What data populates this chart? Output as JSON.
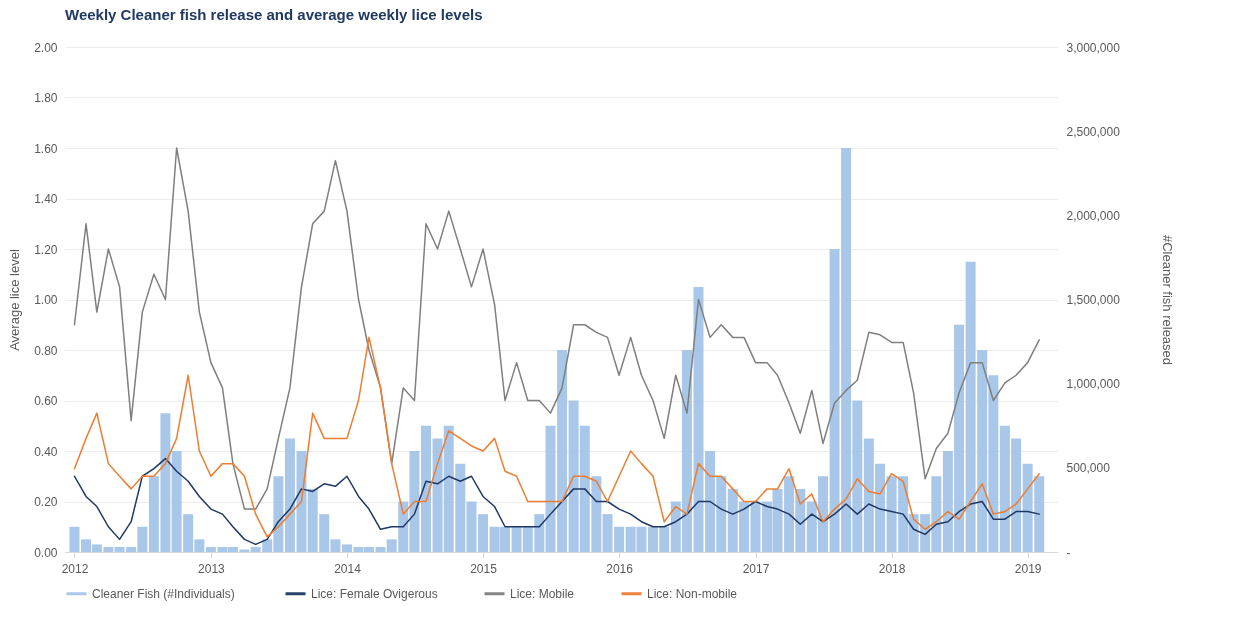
{
  "chart_data": {
    "type": "line",
    "title": "Weekly Cleaner fish release and average weekly lice levels",
    "ylabel": "Average lice level",
    "y2label": "#Cleaner fish released",
    "x": [
      "2012-01",
      "2012-02",
      "2012-03",
      "2012-04",
      "2012-05",
      "2012-06",
      "2012-07",
      "2012-08",
      "2012-09",
      "2012-10",
      "2012-11",
      "2012-12",
      "2013-01",
      "2013-02",
      "2013-03",
      "2013-04",
      "2013-05",
      "2013-06",
      "2013-07",
      "2013-08",
      "2013-09",
      "2013-10",
      "2013-11",
      "2013-12",
      "2014-01",
      "2014-02",
      "2014-03",
      "2014-04",
      "2014-05",
      "2014-06",
      "2014-07",
      "2014-08",
      "2014-09",
      "2014-10",
      "2014-11",
      "2014-12",
      "2015-01",
      "2015-02",
      "2015-03",
      "2015-04",
      "2015-05",
      "2015-06",
      "2015-07",
      "2015-08",
      "2015-09",
      "2015-10",
      "2015-11",
      "2015-12",
      "2016-01",
      "2016-02",
      "2016-03",
      "2016-04",
      "2016-05",
      "2016-06",
      "2016-07",
      "2016-08",
      "2016-09",
      "2016-10",
      "2016-11",
      "2016-12",
      "2017-01",
      "2017-02",
      "2017-03",
      "2017-04",
      "2017-05",
      "2017-06",
      "2017-07",
      "2017-08",
      "2017-09",
      "2017-10",
      "2017-11",
      "2017-12",
      "2018-01",
      "2018-02",
      "2018-03",
      "2018-04",
      "2018-05",
      "2018-06",
      "2018-07",
      "2018-08",
      "2018-09",
      "2018-10",
      "2018-11",
      "2018-12",
      "2019-01",
      "2019-02"
    ],
    "series": [
      {
        "name": "Cleaner Fish  (#Individuals)",
        "type": "bar",
        "axis": "y2",
        "color": "#a4c4e8",
        "values": [
          150000,
          75000,
          45000,
          30000,
          30000,
          30000,
          150000,
          450000,
          825000,
          600000,
          225000,
          75000,
          30000,
          30000,
          30000,
          15000,
          30000,
          75000,
          450000,
          675000,
          600000,
          375000,
          225000,
          75000,
          45000,
          30000,
          30000,
          30000,
          75000,
          300000,
          600000,
          750000,
          675000,
          750000,
          525000,
          300000,
          225000,
          150000,
          150000,
          150000,
          150000,
          225000,
          750000,
          1200000,
          900000,
          750000,
          450000,
          225000,
          150000,
          150000,
          150000,
          150000,
          150000,
          300000,
          1200000,
          1575000,
          600000,
          450000,
          375000,
          300000,
          300000,
          300000,
          375000,
          450000,
          375000,
          300000,
          450000,
          1800000,
          2400000,
          900000,
          675000,
          525000,
          450000,
          450000,
          225000,
          225000,
          450000,
          600000,
          1350000,
          1725000,
          1200000,
          1050000,
          750000,
          675000,
          525000,
          450000
        ]
      },
      {
        "name": "Lice: Female Ovigerous",
        "color": "#1f3864",
        "values": [
          0.3,
          0.22,
          0.18,
          0.1,
          0.05,
          0.12,
          0.3,
          0.33,
          0.37,
          0.32,
          0.28,
          0.22,
          0.17,
          0.15,
          0.1,
          0.05,
          0.03,
          0.05,
          0.12,
          0.17,
          0.25,
          0.24,
          0.27,
          0.26,
          0.3,
          0.22,
          0.17,
          0.09,
          0.1,
          0.1,
          0.15,
          0.28,
          0.27,
          0.3,
          0.28,
          0.3,
          0.22,
          0.18,
          0.1,
          0.1,
          0.1,
          0.1,
          0.15,
          0.2,
          0.25,
          0.25,
          0.2,
          0.2,
          0.17,
          0.15,
          0.12,
          0.1,
          0.1,
          0.12,
          0.15,
          0.2,
          0.2,
          0.17,
          0.15,
          0.17,
          0.2,
          0.18,
          0.17,
          0.15,
          0.11,
          0.15,
          0.12,
          0.15,
          0.19,
          0.15,
          0.19,
          0.17,
          0.16,
          0.15,
          0.09,
          0.07,
          0.11,
          0.12,
          0.16,
          0.19,
          0.2,
          0.13,
          0.13,
          0.16,
          0.16,
          0.15
        ]
      },
      {
        "name": "Lice: Mobile",
        "color": "#7f7f7f",
        "values": [
          0.9,
          1.3,
          0.95,
          1.2,
          1.05,
          0.52,
          0.95,
          1.1,
          1.0,
          1.6,
          1.35,
          0.95,
          0.75,
          0.65,
          0.35,
          0.17,
          0.17,
          0.25,
          0.45,
          0.65,
          1.05,
          1.3,
          1.35,
          1.55,
          1.35,
          1.0,
          0.8,
          0.65,
          0.35,
          0.65,
          0.6,
          1.3,
          1.2,
          1.35,
          1.2,
          1.05,
          1.2,
          0.98,
          0.6,
          0.75,
          0.6,
          0.6,
          0.55,
          0.65,
          0.9,
          0.9,
          0.87,
          0.85,
          0.7,
          0.85,
          0.7,
          0.6,
          0.45,
          0.7,
          0.55,
          1.0,
          0.85,
          0.9,
          0.85,
          0.85,
          0.75,
          0.75,
          0.7,
          0.59,
          0.47,
          0.64,
          0.43,
          0.59,
          0.64,
          0.68,
          0.87,
          0.86,
          0.83,
          0.83,
          0.63,
          0.29,
          0.41,
          0.47,
          0.63,
          0.75,
          0.75,
          0.6,
          0.67,
          0.7,
          0.75,
          0.84
        ]
      },
      {
        "name": "Lice: Non-mobile",
        "color": "#ed7d31",
        "values": [
          0.33,
          0.45,
          0.55,
          0.35,
          0.3,
          0.25,
          0.3,
          0.3,
          0.35,
          0.45,
          0.7,
          0.4,
          0.3,
          0.35,
          0.35,
          0.3,
          0.15,
          0.06,
          0.1,
          0.15,
          0.2,
          0.55,
          0.45,
          0.45,
          0.45,
          0.6,
          0.85,
          0.65,
          0.35,
          0.15,
          0.2,
          0.2,
          0.35,
          0.48,
          0.45,
          0.42,
          0.4,
          0.45,
          0.32,
          0.3,
          0.2,
          0.2,
          0.2,
          0.2,
          0.3,
          0.3,
          0.28,
          0.2,
          0.3,
          0.4,
          0.35,
          0.3,
          0.12,
          0.18,
          0.15,
          0.35,
          0.3,
          0.3,
          0.25,
          0.2,
          0.2,
          0.25,
          0.25,
          0.33,
          0.19,
          0.23,
          0.12,
          0.17,
          0.21,
          0.29,
          0.24,
          0.23,
          0.31,
          0.28,
          0.13,
          0.09,
          0.12,
          0.16,
          0.13,
          0.2,
          0.27,
          0.15,
          0.16,
          0.19,
          0.25,
          0.31
        ]
      }
    ],
    "xlim": [
      "2011-12-20",
      "2019-03-10"
    ],
    "xticks": [
      "2012",
      "2013",
      "2014",
      "2015",
      "2016",
      "2017",
      "2018",
      "2019"
    ],
    "ylim": [
      0,
      2
    ],
    "yticks": [
      {
        "value": 0,
        "label": "0.00"
      },
      {
        "value": 0.2,
        "label": "0.20"
      },
      {
        "value": 0.4,
        "label": "0.40"
      },
      {
        "value": 0.6,
        "label": "0.60"
      },
      {
        "value": 0.8,
        "label": "0.80"
      },
      {
        "value": 1,
        "label": "1.00"
      },
      {
        "value": 1.2,
        "label": "1.20"
      },
      {
        "value": 1.4,
        "label": "1.40"
      },
      {
        "value": 1.6,
        "label": "1.60"
      },
      {
        "value": 1.8,
        "label": "1.80"
      },
      {
        "value": 2,
        "label": "2.00"
      }
    ],
    "y2lim": [
      0,
      3000000
    ],
    "y2ticks": [
      {
        "value": 0,
        "label": "-"
      },
      {
        "value": 500000,
        "label": "500,000"
      },
      {
        "value": 1000000,
        "label": "1,000,000"
      },
      {
        "value": 1500000,
        "label": "1,500,000"
      },
      {
        "value": 2000000,
        "label": "2,000,000"
      },
      {
        "value": 2500000,
        "label": "2,500,000"
      },
      {
        "value": 3000000,
        "label": "3,000,000"
      }
    ],
    "grid": "y",
    "legend": "bottom",
    "line_style": "solid"
  }
}
